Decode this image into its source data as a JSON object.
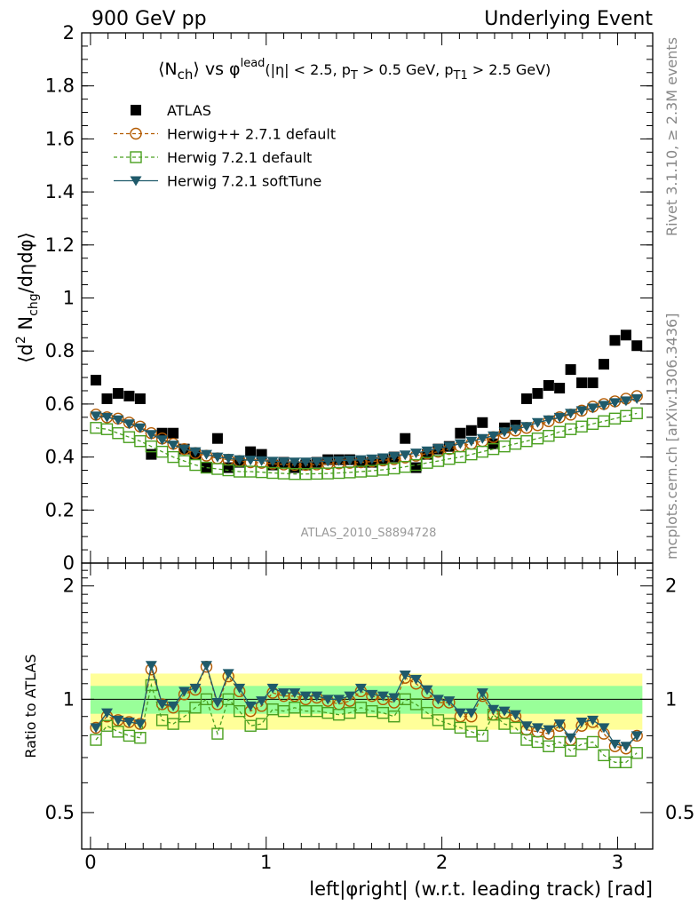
{
  "header": {
    "left": "900 GeV pp",
    "right": "Underlying Event"
  },
  "plot_title": {
    "lhs": "⟨N",
    "lhs_sub": "ch",
    "mid": "⟩ vs φ",
    "mid_sup": "lead",
    "cut_1": "(|η| < 2.5, p",
    "cut_1_sub": "T",
    "cut_2": " > 0.5 GeV, p",
    "cut_2_sub": "T1",
    "cut_3": " > 2.5 GeV)"
  },
  "y_axis_label": {
    "part1": "⟨d",
    "sup": "2",
    "part2": " N",
    "sub": "chg",
    "part3": "/dηdφ⟩"
  },
  "ratio_label": "Ratio to ATLAS",
  "x_axis_label": "left|φright| (w.r.t. leading track) [rad]",
  "analysis_tag": "ATLAS_2010_S8894728",
  "side_text": {
    "rivet": "Rivet 3.1.10, ≥ 2.3M events",
    "mcplots": "mcplots.cern.ch [arXiv:1306.3436]"
  },
  "legend": [
    {
      "label": "ATLAS",
      "color": "#000000",
      "marker": "square-filled"
    },
    {
      "label": "Herwig++ 2.7.1 default",
      "color": "#b35a00",
      "marker": "circle-open"
    },
    {
      "label": "Herwig 7.2.1 default",
      "color": "#4aa020",
      "marker": "square-open"
    },
    {
      "label": "Herwig 7.2.1 softTune",
      "color": "#1f5a6a",
      "marker": "triangle-down-filled"
    }
  ],
  "chart_data": {
    "type": "scatter",
    "x": [
      0.031,
      0.094,
      0.157,
      0.22,
      0.283,
      0.346,
      0.408,
      0.471,
      0.534,
      0.597,
      0.66,
      0.723,
      0.785,
      0.848,
      0.911,
      0.974,
      1.037,
      1.1,
      1.162,
      1.225,
      1.288,
      1.351,
      1.414,
      1.476,
      1.539,
      1.602,
      1.665,
      1.728,
      1.791,
      1.853,
      1.916,
      1.979,
      2.042,
      2.105,
      2.168,
      2.231,
      2.293,
      2.356,
      2.419,
      2.482,
      2.545,
      2.608,
      2.67,
      2.733,
      2.796,
      2.859,
      2.922,
      2.985,
      3.048,
      3.11
    ],
    "series": [
      {
        "name": "ATLAS",
        "values": [
          0.69,
          0.62,
          0.64,
          0.63,
          0.62,
          0.41,
          0.49,
          0.49,
          0.43,
          0.41,
          0.36,
          0.47,
          0.36,
          0.38,
          0.42,
          0.41,
          0.37,
          0.38,
          0.36,
          0.37,
          0.38,
          0.39,
          0.39,
          0.39,
          0.38,
          0.38,
          0.39,
          0.4,
          0.47,
          0.36,
          0.41,
          0.43,
          0.44,
          0.49,
          0.5,
          0.53,
          0.45,
          0.51,
          0.52,
          0.62,
          0.64,
          0.67,
          0.66,
          0.73,
          0.68,
          0.68,
          0.75,
          0.84,
          0.86,
          0.82
        ]
      },
      {
        "name": "Herwig++ 2.7.1 default",
        "values": [
          0.56,
          0.55,
          0.545,
          0.53,
          0.515,
          0.49,
          0.47,
          0.45,
          0.43,
          0.415,
          0.405,
          0.395,
          0.39,
          0.385,
          0.38,
          0.378,
          0.375,
          0.372,
          0.37,
          0.37,
          0.372,
          0.374,
          0.376,
          0.378,
          0.38,
          0.383,
          0.387,
          0.392,
          0.398,
          0.405,
          0.413,
          0.42,
          0.43,
          0.44,
          0.45,
          0.46,
          0.475,
          0.49,
          0.5,
          0.51,
          0.52,
          0.535,
          0.55,
          0.56,
          0.575,
          0.59,
          0.6,
          0.61,
          0.62,
          0.63
        ]
      },
      {
        "name": "Herwig 7.2.1 default",
        "values": [
          0.51,
          0.505,
          0.49,
          0.475,
          0.46,
          0.44,
          0.42,
          0.4,
          0.385,
          0.37,
          0.36,
          0.355,
          0.35,
          0.345,
          0.345,
          0.343,
          0.34,
          0.338,
          0.336,
          0.336,
          0.337,
          0.338,
          0.34,
          0.342,
          0.345,
          0.348,
          0.352,
          0.357,
          0.363,
          0.37,
          0.378,
          0.385,
          0.393,
          0.4,
          0.41,
          0.42,
          0.43,
          0.44,
          0.45,
          0.46,
          0.47,
          0.48,
          0.495,
          0.505,
          0.515,
          0.525,
          0.535,
          0.545,
          0.555,
          0.565
        ]
      },
      {
        "name": "Herwig 7.2.1 softTune",
        "values": [
          0.555,
          0.55,
          0.54,
          0.525,
          0.51,
          0.485,
          0.465,
          0.445,
          0.43,
          0.42,
          0.41,
          0.4,
          0.395,
          0.39,
          0.388,
          0.386,
          0.384,
          0.382,
          0.381,
          0.381,
          0.382,
          0.384,
          0.386,
          0.388,
          0.39,
          0.393,
          0.397,
          0.402,
          0.408,
          0.415,
          0.423,
          0.432,
          0.44,
          0.45,
          0.46,
          0.47,
          0.48,
          0.495,
          0.505,
          0.515,
          0.53,
          0.54,
          0.55,
          0.565,
          0.575,
          0.585,
          0.595,
          0.605,
          0.612,
          0.62
        ]
      }
    ],
    "ratio": {
      "ylabel": "Ratio to ATLAS",
      "ylim": [
        0.4,
        2.3
      ],
      "yticks": [
        0.5,
        1,
        2
      ],
      "band_inner": 0.085,
      "band_outer": 0.17,
      "series": [
        {
          "name": "Herwig++ 2.7.1 default",
          "values": [
            0.84,
            0.9,
            0.88,
            0.87,
            0.86,
            1.2,
            0.97,
            0.95,
            1.03,
            1.06,
            1.22,
            0.97,
            1.15,
            1.05,
            0.93,
            0.96,
            1.04,
            1.02,
            1.02,
            1.0,
            1.01,
            0.99,
            0.97,
            0.99,
            1.05,
            1.02,
            1.0,
            0.98,
            1.14,
            1.1,
            1.04,
            0.98,
            0.98,
            0.9,
            0.9,
            1.02,
            0.91,
            0.92,
            0.9,
            0.83,
            0.82,
            0.81,
            0.85,
            0.78,
            0.85,
            0.87,
            0.81,
            0.75,
            0.74,
            0.8
          ]
        },
        {
          "name": "Herwig 7.2.1 default",
          "values": [
            0.78,
            0.85,
            0.82,
            0.8,
            0.79,
            1.09,
            0.88,
            0.86,
            0.9,
            0.95,
            1.0,
            0.81,
            1.0,
            0.93,
            0.85,
            0.86,
            0.94,
            0.93,
            0.95,
            0.93,
            0.93,
            0.92,
            0.91,
            0.92,
            0.95,
            0.93,
            0.92,
            0.9,
            1.0,
            0.97,
            0.92,
            0.88,
            0.86,
            0.84,
            0.82,
            0.8,
            0.91,
            0.86,
            0.84,
            0.78,
            0.77,
            0.75,
            0.77,
            0.73,
            0.76,
            0.77,
            0.71,
            0.68,
            0.68,
            0.72
          ]
        },
        {
          "name": "Herwig 7.2.1 softTune",
          "values": [
            0.84,
            0.92,
            0.88,
            0.87,
            0.86,
            1.23,
            0.97,
            0.96,
            1.05,
            1.07,
            1.23,
            0.98,
            1.17,
            1.07,
            0.96,
            0.99,
            1.07,
            1.04,
            1.04,
            1.02,
            1.02,
            1.0,
            1.0,
            1.02,
            1.07,
            1.03,
            1.02,
            1.01,
            1.16,
            1.13,
            1.06,
            1.0,
            0.99,
            0.92,
            0.92,
            1.04,
            0.94,
            0.93,
            0.91,
            0.85,
            0.84,
            0.83,
            0.86,
            0.79,
            0.87,
            0.88,
            0.84,
            0.76,
            0.75,
            0.8
          ]
        }
      ]
    },
    "xlim": [
      -0.05,
      3.2
    ],
    "ylim": [
      0,
      2
    ],
    "xticks": [
      0,
      1,
      2,
      3
    ],
    "yticks": [
      0,
      0.2,
      0.4,
      0.6,
      0.8,
      1,
      1.2,
      1.4,
      1.6,
      1.8,
      2
    ],
    "xlabel": "left|φright| (w.r.t. leading track) [rad]",
    "legend_position": "top-left"
  }
}
